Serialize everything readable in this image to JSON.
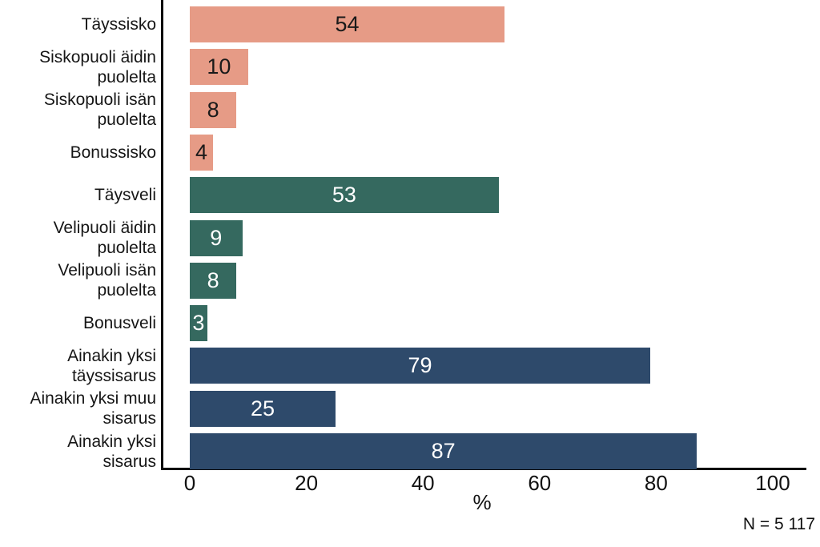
{
  "chart_data": {
    "type": "bar",
    "orientation": "horizontal",
    "title": "",
    "xlabel": "%",
    "ylabel": "",
    "xlim": [
      0,
      100
    ],
    "x_ticks": [
      0,
      20,
      40,
      60,
      80,
      100
    ],
    "grid": false,
    "legend": false,
    "note": "N = 5 117",
    "colors": {
      "sisters": "#e69b86",
      "brothers": "#35695f",
      "any_sibling": "#2e4a6b",
      "value_on_sisters": "#1a1a1a",
      "value_on_dark": "#ffffff",
      "axis": "#0c0c0c"
    },
    "categories": [
      "Täyssisko",
      "Siskopuoli äidin puolelta",
      "Siskopuoli isän puolelta",
      "Bonussisko",
      "Täysveli",
      "Velipuoli äidin puolelta",
      "Velipuoli isän puolelta",
      "Bonusveli",
      "Ainakin yksi täyssisarus",
      "Ainakin yksi muu sisarus",
      "Ainakin yksi sisarus"
    ],
    "values": [
      54,
      10,
      8,
      4,
      53,
      9,
      8,
      3,
      79,
      25,
      87
    ],
    "bars": [
      {
        "label_lines": [
          "Täyssisko"
        ],
        "value": 54,
        "color": "#e69b86",
        "value_color": "#1a1a1a"
      },
      {
        "label_lines": [
          "Siskopuoli äidin",
          "puolelta"
        ],
        "value": 10,
        "color": "#e69b86",
        "value_color": "#1a1a1a"
      },
      {
        "label_lines": [
          "Siskopuoli isän",
          "puolelta"
        ],
        "value": 8,
        "color": "#e69b86",
        "value_color": "#1a1a1a"
      },
      {
        "label_lines": [
          "Bonussisko"
        ],
        "value": 4,
        "color": "#e69b86",
        "value_color": "#1a1a1a"
      },
      {
        "label_lines": [
          "Täysveli"
        ],
        "value": 53,
        "color": "#35695f",
        "value_color": "#ffffff"
      },
      {
        "label_lines": [
          "Velipuoli äidin",
          "puolelta"
        ],
        "value": 9,
        "color": "#35695f",
        "value_color": "#ffffff"
      },
      {
        "label_lines": [
          "Velipuoli isän",
          "puolelta"
        ],
        "value": 8,
        "color": "#35695f",
        "value_color": "#ffffff"
      },
      {
        "label_lines": [
          "Bonusveli"
        ],
        "value": 3,
        "color": "#35695f",
        "value_color": "#ffffff"
      },
      {
        "label_lines": [
          "Ainakin yksi",
          "täyssisarus"
        ],
        "value": 79,
        "color": "#2e4a6b",
        "value_color": "#ffffff"
      },
      {
        "label_lines": [
          "Ainakin yksi muu",
          "sisarus"
        ],
        "value": 25,
        "color": "#2e4a6b",
        "value_color": "#ffffff"
      },
      {
        "label_lines": [
          "Ainakin yksi",
          "sisarus"
        ],
        "value": 87,
        "color": "#2e4a6b",
        "value_color": "#ffffff"
      }
    ]
  }
}
